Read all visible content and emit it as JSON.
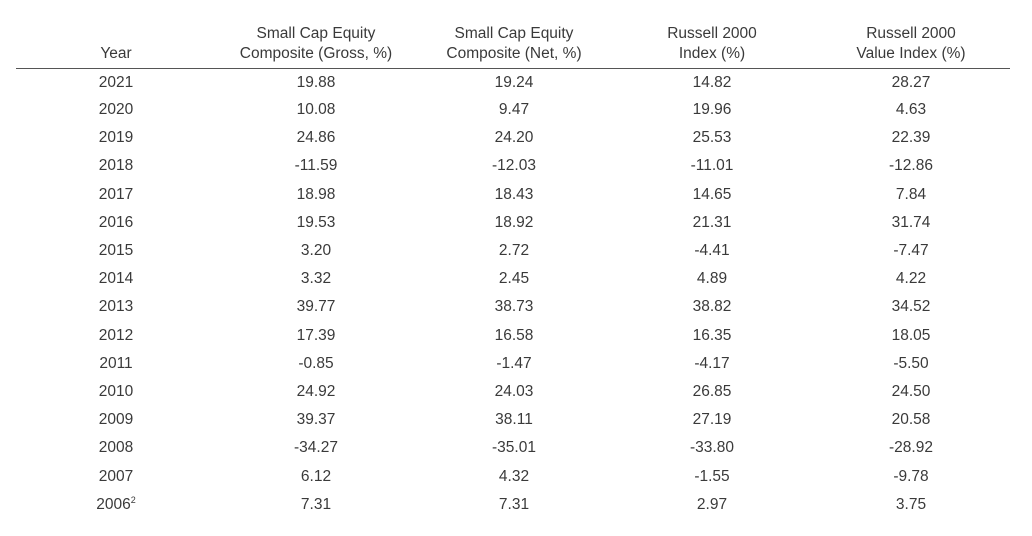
{
  "table": {
    "headers": [
      {
        "line1": "",
        "line2": "Year"
      },
      {
        "line1": "Small Cap Equity",
        "line2": "Composite (Gross, %)"
      },
      {
        "line1": "Small Cap Equity",
        "line2": "Composite (Net, %)"
      },
      {
        "line1": "Russell 2000",
        "line2": "Index (%)"
      },
      {
        "line1": "Russell 2000",
        "line2": "Value Index (%)"
      }
    ],
    "rows": [
      {
        "year": "2021",
        "sup": "",
        "gross": "19.88",
        "net": "19.24",
        "r2000": "14.82",
        "r2000v": "28.27"
      },
      {
        "year": "2020",
        "sup": "",
        "gross": "10.08",
        "net": "9.47",
        "r2000": "19.96",
        "r2000v": "4.63"
      },
      {
        "year": "2019",
        "sup": "",
        "gross": "24.86",
        "net": "24.20",
        "r2000": "25.53",
        "r2000v": "22.39"
      },
      {
        "year": "2018",
        "sup": "",
        "gross": "-11.59",
        "net": "-12.03",
        "r2000": "-11.01",
        "r2000v": "-12.86"
      },
      {
        "year": "2017",
        "sup": "",
        "gross": "18.98",
        "net": "18.43",
        "r2000": "14.65",
        "r2000v": "7.84"
      },
      {
        "year": "2016",
        "sup": "",
        "gross": "19.53",
        "net": "18.92",
        "r2000": "21.31",
        "r2000v": "31.74"
      },
      {
        "year": "2015",
        "sup": "",
        "gross": "3.20",
        "net": "2.72",
        "r2000": "-4.41",
        "r2000v": "-7.47"
      },
      {
        "year": "2014",
        "sup": "",
        "gross": "3.32",
        "net": "2.45",
        "r2000": "4.89",
        "r2000v": "4.22"
      },
      {
        "year": "2013",
        "sup": "",
        "gross": "39.77",
        "net": "38.73",
        "r2000": "38.82",
        "r2000v": "34.52"
      },
      {
        "year": "2012",
        "sup": "",
        "gross": "17.39",
        "net": "16.58",
        "r2000": "16.35",
        "r2000v": "18.05"
      },
      {
        "year": "2011",
        "sup": "",
        "gross": "-0.85",
        "net": "-1.47",
        "r2000": "-4.17",
        "r2000v": "-5.50"
      },
      {
        "year": "2010",
        "sup": "",
        "gross": "24.92",
        "net": "24.03",
        "r2000": "26.85",
        "r2000v": "24.50"
      },
      {
        "year": "2009",
        "sup": "",
        "gross": "39.37",
        "net": "38.11",
        "r2000": "27.19",
        "r2000v": "20.58"
      },
      {
        "year": "2008",
        "sup": "",
        "gross": "-34.27",
        "net": "-35.01",
        "r2000": "-33.80",
        "r2000v": "-28.92"
      },
      {
        "year": "2007",
        "sup": "",
        "gross": "6.12",
        "net": "4.32",
        "r2000": "-1.55",
        "r2000v": "-9.78"
      },
      {
        "year": "2006",
        "sup": "2",
        "gross": "7.31",
        "net": "7.31",
        "r2000": "2.97",
        "r2000v": "3.75"
      }
    ]
  }
}
